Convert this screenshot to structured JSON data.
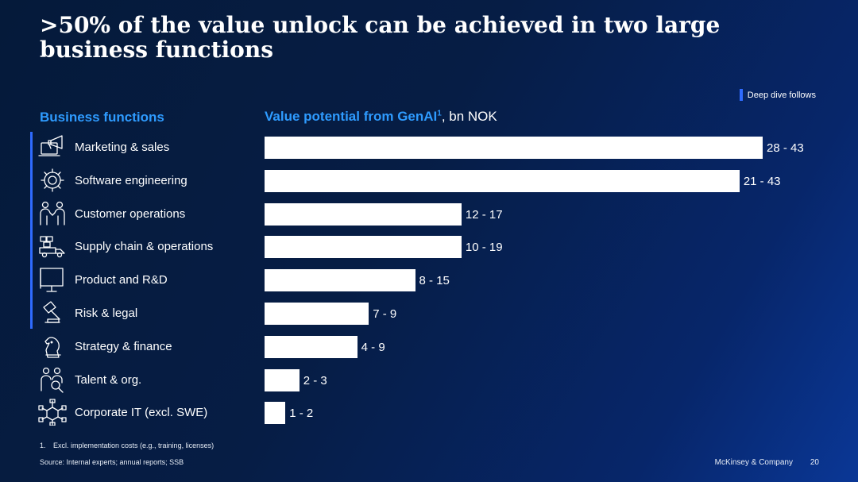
{
  "title": ">50% of the value unlock can be achieved in two large business functions",
  "legend": {
    "label": "Deep dive follows",
    "color": "#2f6bff"
  },
  "left_header": "Business functions",
  "right_header": {
    "highlight": "Value potential from GenAI",
    "sup": "1",
    "rest": ", bn NOK"
  },
  "rows": [
    {
      "label": "Marketing & sales",
      "icon": "megaphone-laptop-icon",
      "value_label": "28 - 43"
    },
    {
      "label": "Software engineering",
      "icon": "gear-icon",
      "value_label": "21 - 43"
    },
    {
      "label": "Customer operations",
      "icon": "handshake-people-icon",
      "value_label": "12 - 17"
    },
    {
      "label": "Supply chain & operations",
      "icon": "delivery-truck-icon",
      "value_label": "10 - 19"
    },
    {
      "label": "Product and R&D",
      "icon": "monitor-icon",
      "value_label": "8 - 15"
    },
    {
      "label": "Risk & legal",
      "icon": "gavel-icon",
      "value_label": "7 - 9"
    },
    {
      "label": "Strategy & finance",
      "icon": "chess-knight-icon",
      "value_label": "4 - 9"
    },
    {
      "label": "Talent & org.",
      "icon": "people-search-icon",
      "value_label": "2 - 3"
    },
    {
      "label": "Corporate IT (excl. SWE)",
      "icon": "network-cube-icon",
      "value_label": "1 - 2"
    }
  ],
  "chart_data": {
    "type": "bar",
    "orientation": "horizontal",
    "categories": [
      "Marketing & sales",
      "Software engineering",
      "Customer operations",
      "Supply chain & operations",
      "Product and R&D",
      "Risk & legal",
      "Strategy & finance",
      "Talent & org.",
      "Corporate IT (excl. SWE)"
    ],
    "values": [
      43,
      41,
      17,
      17,
      13,
      9,
      8,
      3,
      1.8
    ],
    "value_labels": [
      "28 - 43",
      "21 - 43",
      "12 - 17",
      "10 - 19",
      "8 - 15",
      "7 - 9",
      "4 - 9",
      "2 - 3",
      "1 - 2"
    ],
    "deep_dive_categories": [
      "Marketing & sales",
      "Software engineering",
      "Customer operations",
      "Supply chain & operations",
      "Product and R&D",
      "Risk & legal"
    ],
    "xlim": [
      0,
      43
    ],
    "grid": false,
    "bar_color": "#ffffff"
  },
  "footnote": {
    "num": "1.",
    "text": "Excl. implementation costs (e.g., training, licenses)"
  },
  "source": "Source: Internal experts; annual reports; SSB",
  "brand": "McKinsey & Company",
  "page_number": "20"
}
